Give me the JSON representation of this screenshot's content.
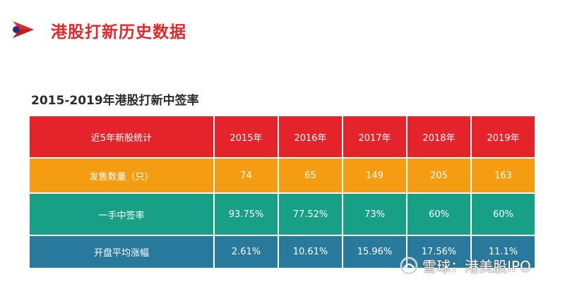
{
  "header": {
    "title": "港股打新历史数据",
    "accent_color": "#e3282b"
  },
  "table": {
    "title": "2015-2019年港股打新中签率",
    "columns": [
      "近5年新股统计",
      "2015年",
      "2016年",
      "2017年",
      "2018年",
      "2019年"
    ],
    "rows": [
      {
        "label": "发售数量（只）",
        "values": [
          "74",
          "65",
          "149",
          "205",
          "163"
        ],
        "color": "#f49c12"
      },
      {
        "label": "一手中签率",
        "values": [
          "93.75%",
          "77.52%",
          "73%",
          "60%",
          "60%"
        ],
        "color": "#17a086"
      },
      {
        "label": "开盘平均涨幅",
        "values": [
          "2.61%",
          "10.61%",
          "15.96%",
          "17.56%",
          "11.1%"
        ],
        "color": "#28799b"
      }
    ],
    "header_color": "#e4242a"
  },
  "watermark": {
    "text": "雪球：港美股IPO",
    "icon": "snowball-icon"
  }
}
